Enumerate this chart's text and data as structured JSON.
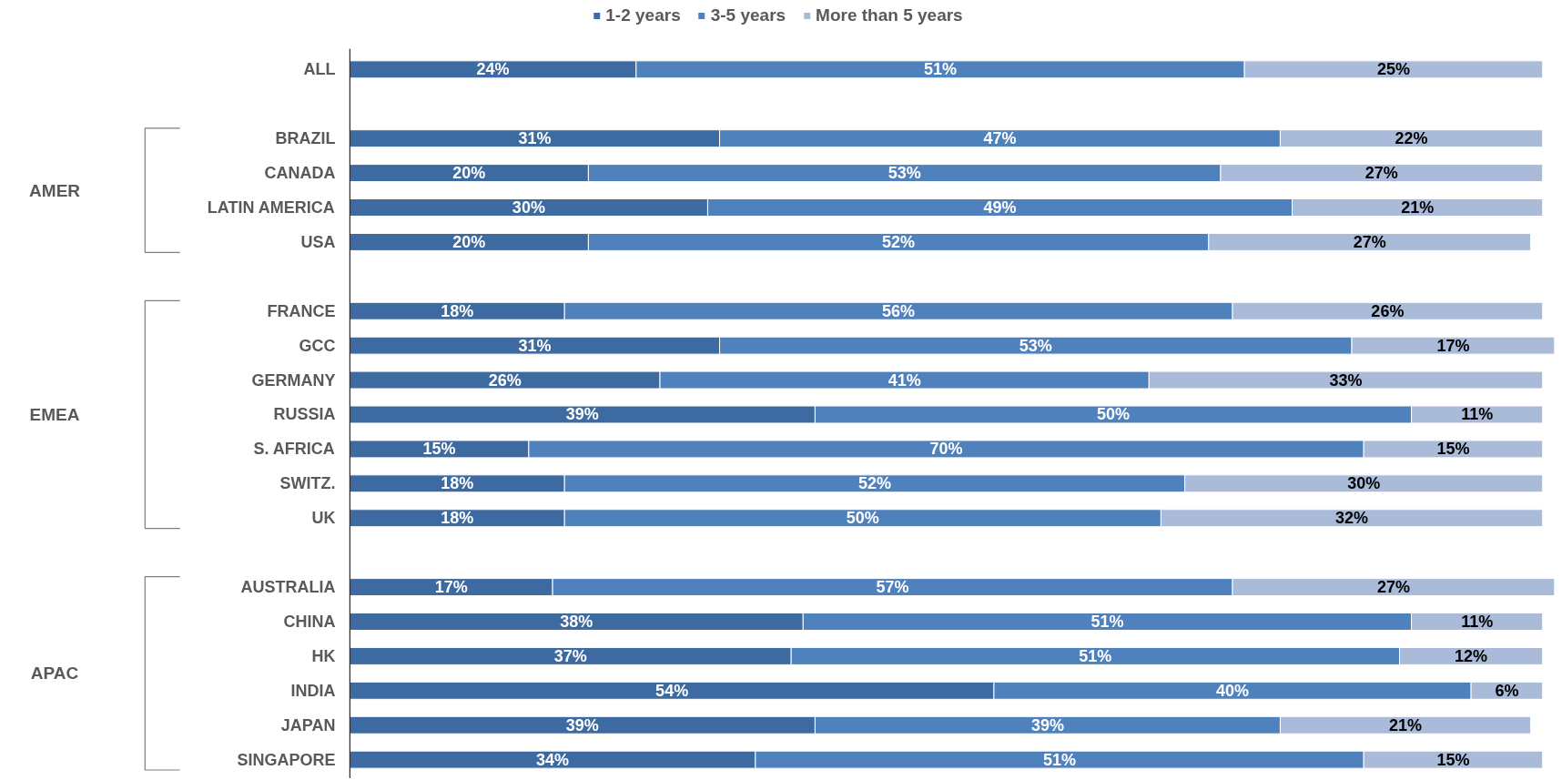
{
  "chart_data": {
    "type": "bar",
    "orientation": "horizontal",
    "stacked": true,
    "legend": "top",
    "grid": false,
    "categories": [
      "ALL",
      null,
      "BRAZIL",
      "CANADA",
      "LATIN AMERICA",
      "USA",
      null,
      "FRANCE",
      "GCC",
      "GERMANY",
      "RUSSIA",
      "S. AFRICA",
      "SWITZ.",
      "UK",
      null,
      "AUSTRALIA",
      "CHINA",
      "HK",
      "INDIA",
      "JAPAN",
      "SINGAPORE"
    ],
    "series": [
      {
        "name": "1-2 years",
        "color": "#3d6aa0",
        "values": [
          24,
          null,
          31,
          20,
          30,
          20,
          null,
          18,
          31,
          26,
          39,
          15,
          18,
          18,
          null,
          17,
          38,
          37,
          54,
          39,
          34
        ],
        "value_labels": [
          "24%",
          null,
          "31%",
          "20%",
          "30%",
          "20%",
          null,
          "18%",
          "31%",
          "26%",
          "39%",
          "15%",
          "18%",
          "18%",
          null,
          "17%",
          "38%",
          "37%",
          "54%",
          "39%",
          "34%"
        ]
      },
      {
        "name": "3-5 years",
        "color": "#4f81bd",
        "values": [
          51,
          null,
          47,
          53,
          49,
          52,
          null,
          56,
          53,
          41,
          50,
          70,
          52,
          50,
          null,
          57,
          51,
          51,
          40,
          39,
          51
        ],
        "value_labels": [
          "51%",
          null,
          "47%",
          "53%",
          "49%",
          "52%",
          null,
          "56%",
          "53%",
          "41%",
          "50%",
          "70%",
          "52%",
          "50%",
          null,
          "57%",
          "51%",
          "51%",
          "40%",
          "39%",
          "51%"
        ]
      },
      {
        "name": "More than 5 years",
        "color": "#a9bbd9",
        "values": [
          25,
          null,
          22,
          27,
          21,
          27,
          null,
          26,
          17,
          33,
          11,
          15,
          30,
          32,
          null,
          27,
          11,
          12,
          6,
          21,
          15
        ],
        "value_labels": [
          "25%",
          null,
          "22%",
          "27%",
          "21%",
          "27%",
          null,
          "26%",
          "17%",
          "33%",
          "11%",
          "15%",
          "30%",
          "32%",
          null,
          "27%",
          "11%",
          "12%",
          "6%",
          "21%",
          "15%"
        ]
      }
    ],
    "annotations": [
      "AMER",
      "EMEA",
      "APAC"
    ]
  }
}
